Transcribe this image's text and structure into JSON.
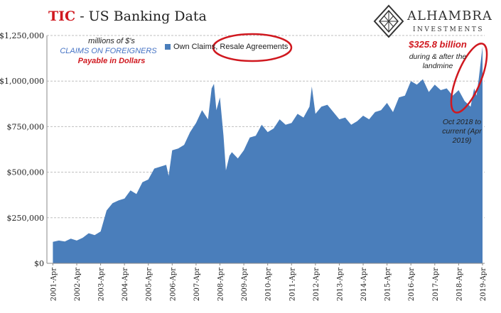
{
  "header": {
    "title_accent": "TIC",
    "title_rest": " - US Banking Data"
  },
  "logo": {
    "name": "ALHAMBRA",
    "subtitle": "INVESTMENTS"
  },
  "notes": {
    "units": "millions of $'s",
    "series_label": "CLAIMS ON FOREIGNERS",
    "payable": "Payable in Dollars"
  },
  "annotations": {
    "amount": "$325.8 billion",
    "during": "during & after the landmine",
    "period": "Oct 2018 to current (Apr 2019)"
  },
  "colors": {
    "area": "#4a7ebb",
    "highlight": "#d0181f",
    "grid": "#bfbfbf"
  },
  "chart_data": {
    "type": "area",
    "title": "TIC - US Banking Data",
    "ylim": [
      0,
      1250000
    ],
    "y_ticks": [
      "$0",
      "$250,000",
      "$500,000",
      "$750,000",
      "$1,000,000",
      "$1,250,000"
    ],
    "x_ticks": [
      "2001-Apr",
      "2002-Apr",
      "2003-Apr",
      "2004-Apr",
      "2005-Apr",
      "2006-Apr",
      "2007-Apr",
      "2008-Apr",
      "2009-Apr",
      "2010-Apr",
      "2011-Apr",
      "2012-Apr",
      "2013-Apr",
      "2014-Apr",
      "2015-Apr",
      "2016-Apr",
      "2017-Apr",
      "2018-Apr",
      "2019-Apr"
    ],
    "grid": true,
    "legend": "top-center",
    "series": [
      {
        "name": "Own Claims, Resale Agreements",
        "x_year": [
          2001.25,
          2001.5,
          2001.75,
          2002.0,
          2002.25,
          2002.5,
          2002.75,
          2003.0,
          2003.25,
          2003.5,
          2003.75,
          2004.0,
          2004.25,
          2004.5,
          2004.75,
          2005.0,
          2005.25,
          2005.5,
          2005.75,
          2006.0,
          2006.1,
          2006.25,
          2006.5,
          2006.75,
          2007.0,
          2007.25,
          2007.5,
          2007.75,
          2007.9,
          2008.0,
          2008.1,
          2008.25,
          2008.4,
          2008.5,
          2008.65,
          2008.75,
          2009.0,
          2009.25,
          2009.5,
          2009.75,
          2010.0,
          2010.25,
          2010.5,
          2010.75,
          2011.0,
          2011.25,
          2011.5,
          2011.75,
          2012.0,
          2012.1,
          2012.25,
          2012.5,
          2012.75,
          2013.0,
          2013.25,
          2013.5,
          2013.75,
          2014.0,
          2014.25,
          2014.5,
          2014.75,
          2015.0,
          2015.25,
          2015.5,
          2015.75,
          2016.0,
          2016.25,
          2016.5,
          2016.75,
          2017.0,
          2017.25,
          2017.5,
          2017.75,
          2018.0,
          2018.25,
          2018.5,
          2018.75,
          2018.9,
          2019.0,
          2019.1,
          2019.25
        ],
        "values": [
          118000,
          125000,
          120000,
          135000,
          125000,
          140000,
          165000,
          155000,
          175000,
          290000,
          330000,
          345000,
          355000,
          400000,
          380000,
          445000,
          460000,
          520000,
          530000,
          540000,
          480000,
          620000,
          630000,
          650000,
          720000,
          770000,
          840000,
          790000,
          960000,
          985000,
          840000,
          910000,
          700000,
          510000,
          590000,
          610000,
          575000,
          620000,
          690000,
          700000,
          760000,
          720000,
          740000,
          790000,
          760000,
          770000,
          820000,
          800000,
          860000,
          970000,
          820000,
          860000,
          870000,
          830000,
          790000,
          800000,
          760000,
          780000,
          810000,
          790000,
          830000,
          840000,
          880000,
          830000,
          910000,
          920000,
          1000000,
          980000,
          1010000,
          940000,
          980000,
          950000,
          960000,
          920000,
          950000,
          890000,
          860000,
          960000,
          920000,
          1020000,
          1190000
        ]
      }
    ]
  }
}
